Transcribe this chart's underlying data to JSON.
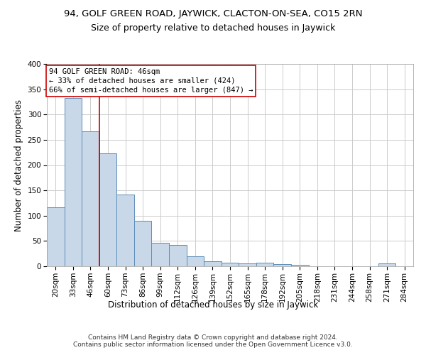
{
  "title": "94, GOLF GREEN ROAD, JAYWICK, CLACTON-ON-SEA, CO15 2RN",
  "subtitle": "Size of property relative to detached houses in Jaywick",
  "xlabel": "Distribution of detached houses by size in Jaywick",
  "ylabel": "Number of detached properties",
  "categories": [
    "20sqm",
    "33sqm",
    "46sqm",
    "60sqm",
    "73sqm",
    "86sqm",
    "99sqm",
    "112sqm",
    "126sqm",
    "139sqm",
    "152sqm",
    "165sqm",
    "178sqm",
    "192sqm",
    "205sqm",
    "218sqm",
    "231sqm",
    "244sqm",
    "258sqm",
    "271sqm",
    "284sqm"
  ],
  "values": [
    117,
    332,
    267,
    223,
    142,
    90,
    46,
    42,
    19,
    10,
    7,
    5,
    7,
    4,
    3,
    0,
    0,
    0,
    0,
    5,
    0
  ],
  "bar_color": "#c8d8e8",
  "bar_edge_color": "#5b8db8",
  "highlight_index": 2,
  "highlight_line_color": "#cc0000",
  "annotation_text": "94 GOLF GREEN ROAD: 46sqm\n← 33% of detached houses are smaller (424)\n66% of semi-detached houses are larger (847) →",
  "annotation_box_color": "#ffffff",
  "annotation_box_edge_color": "#cc0000",
  "ylim": [
    0,
    400
  ],
  "yticks": [
    0,
    50,
    100,
    150,
    200,
    250,
    300,
    350,
    400
  ],
  "background_color": "#ffffff",
  "grid_color": "#cccccc",
  "footer_text": "Contains HM Land Registry data © Crown copyright and database right 2024.\nContains public sector information licensed under the Open Government Licence v3.0.",
  "title_fontsize": 9.5,
  "subtitle_fontsize": 9,
  "axis_label_fontsize": 8.5,
  "tick_fontsize": 7.5,
  "annotation_fontsize": 7.5,
  "footer_fontsize": 6.5
}
